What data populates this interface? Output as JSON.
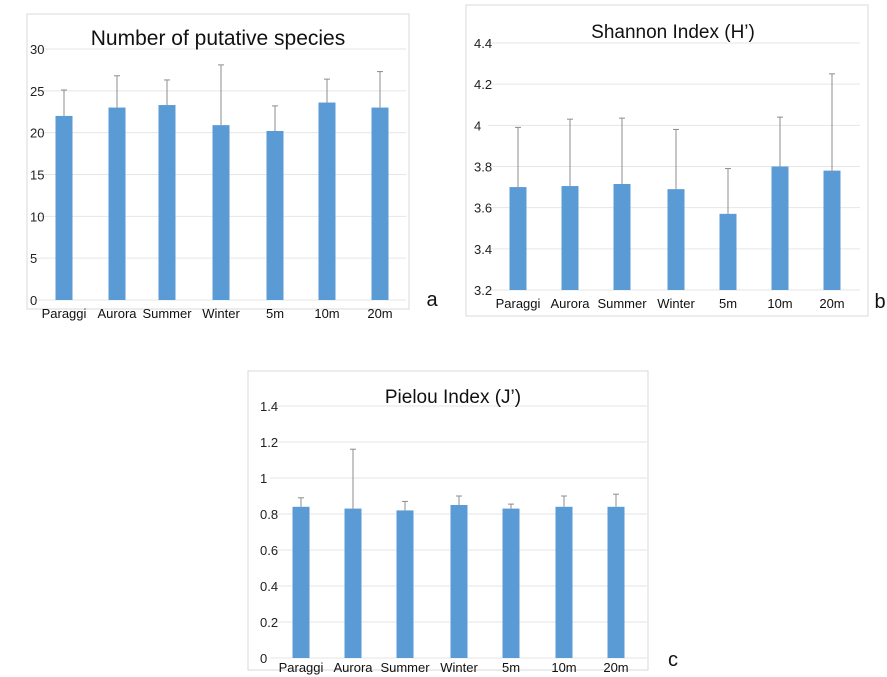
{
  "chart_data": [
    {
      "type": "bar",
      "panel_label": "a",
      "title": "Number of putative species",
      "categories": [
        "Paraggi",
        "Aurora",
        "Summer",
        "Winter",
        "5m",
        "10m",
        "20m"
      ],
      "values": [
        22,
        23,
        23.3,
        20.9,
        20.2,
        23.6,
        23
      ],
      "error_upper": [
        25.1,
        26.8,
        26.3,
        28.1,
        23.2,
        26.4,
        27.3
      ],
      "ylim": [
        0,
        30
      ],
      "yticks": [
        "0",
        "5",
        "10",
        "15",
        "20",
        "25",
        "30"
      ],
      "grid": true,
      "bar_color": "#5b9bd5"
    },
    {
      "type": "bar",
      "panel_label": "b",
      "title": "Shannon Index (H’)",
      "categories": [
        "Paraggi",
        "Aurora",
        "Summer",
        "Winter",
        "5m",
        "10m",
        "20m"
      ],
      "values": [
        3.7,
        3.705,
        3.715,
        3.69,
        3.57,
        3.8,
        3.78
      ],
      "error_upper": [
        3.99,
        4.03,
        4.035,
        3.98,
        3.79,
        4.04,
        4.25
      ],
      "ylim": [
        3.2,
        4.4
      ],
      "yticks": [
        "3.2",
        "3.4",
        "3.6",
        "3.8",
        "4",
        "4.2",
        "4.4"
      ],
      "grid": true,
      "bar_color": "#5b9bd5"
    },
    {
      "type": "bar",
      "panel_label": "c",
      "title": "Pielou Index (J’)",
      "categories": [
        "Paraggi",
        "Aurora",
        "Summer",
        "Winter",
        "5m",
        "10m",
        "20m"
      ],
      "values": [
        0.84,
        0.83,
        0.82,
        0.85,
        0.83,
        0.84,
        0.84
      ],
      "error_upper": [
        0.89,
        1.16,
        0.87,
        0.9,
        0.855,
        0.9,
        0.91
      ],
      "ylim": [
        0,
        1.4
      ],
      "yticks": [
        "0",
        "0.2",
        "0.4",
        "0.6",
        "0.8",
        "1",
        "1.2",
        "1.4"
      ],
      "grid": true,
      "bar_color": "#5b9bd5"
    }
  ]
}
